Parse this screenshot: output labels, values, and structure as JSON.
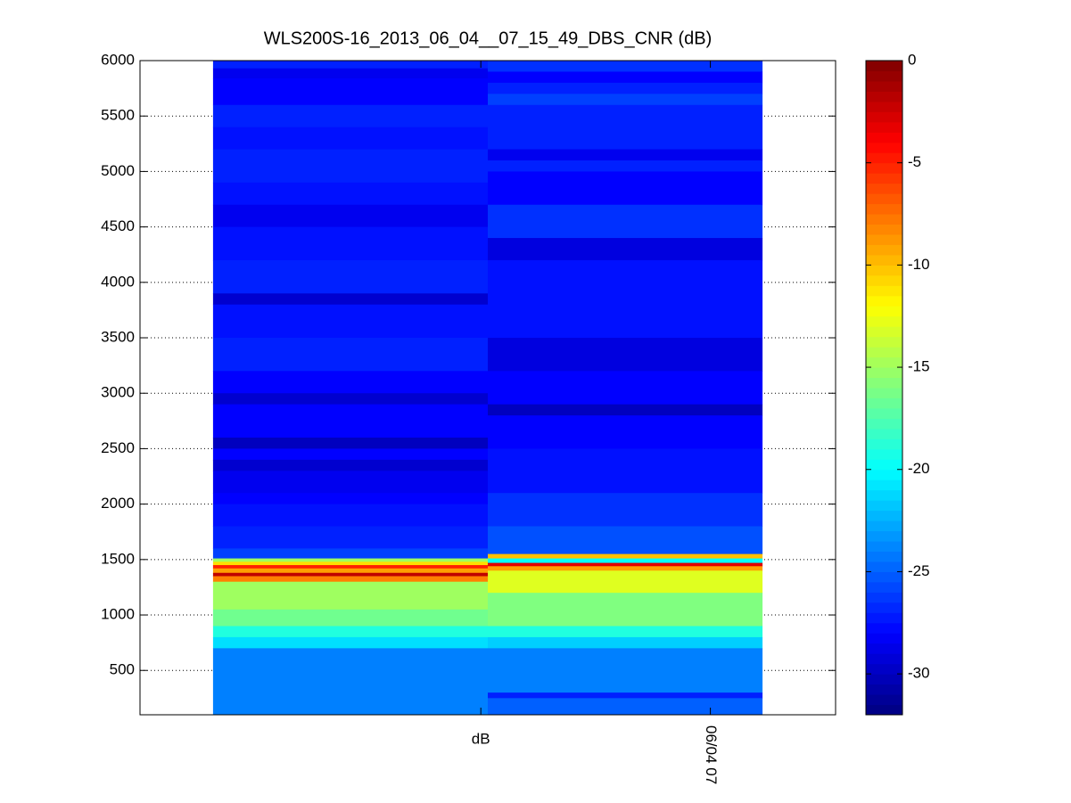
{
  "chart_data": {
    "type": "heatmap",
    "title": "WLS200S-16_2013_06_04__07_15_49_DBS_CNR (dB)",
    "ylim": [
      100,
      6000
    ],
    "yticks": [
      500,
      1000,
      1500,
      2000,
      2500,
      3000,
      3500,
      4000,
      4500,
      5000,
      5500,
      6000
    ],
    "xlim": [
      0,
      1
    ],
    "xticks": [
      {
        "value": 0.49,
        "label": "dB"
      },
      {
        "value": 0.82,
        "label": "06/04 07"
      }
    ],
    "x": [
      0.105,
      0.5,
      0.895
    ],
    "columns": [
      {
        "edges": [
          6000,
          5930,
          5840,
          5600,
          5400,
          5200,
          4900,
          4700,
          4500,
          4200,
          3900,
          3800,
          3500,
          3200,
          3000,
          2900,
          2600,
          2500,
          2400,
          2300,
          2100,
          2000,
          1800,
          1600,
          1510,
          1480,
          1450,
          1420,
          1380,
          1350,
          1300,
          1050,
          900,
          800,
          700,
          100
        ],
        "values": [
          -27,
          -28.5,
          -28,
          -27,
          -27.5,
          -27,
          -27.5,
          -28.5,
          -27.5,
          -27,
          -29.5,
          -27.5,
          -27,
          -28,
          -29.5,
          -28,
          -30,
          -28,
          -29.5,
          -28.5,
          -28,
          -27.5,
          -27,
          -26,
          -15,
          -11,
          -5,
          -9,
          -2,
          -8,
          -15,
          -16.5,
          -19,
          -21,
          -24
        ]
      },
      {
        "edges": [
          6000,
          5900,
          5800,
          5700,
          5600,
          5200,
          5100,
          5000,
          4700,
          4400,
          4200,
          3500,
          3200,
          2900,
          2800,
          2500,
          2100,
          1800,
          1550,
          1510,
          1470,
          1440,
          1400,
          1200,
          900,
          800,
          700,
          300,
          250,
          100
        ],
        "values": [
          -26.5,
          -28,
          -27,
          -26,
          -27,
          -28.5,
          -27,
          -28,
          -26.5,
          -29,
          -27.5,
          -29,
          -28,
          -30,
          -28,
          -27.5,
          -26.5,
          -25.5,
          -10,
          -20,
          -3,
          -9,
          -13,
          -16,
          -19,
          -21.5,
          -24,
          -27,
          -25
        ]
      }
    ],
    "colormap": "jet",
    "clim": [
      -32,
      0
    ],
    "colorbar_ticks": [
      -30,
      -25,
      -20,
      -15,
      -10,
      -5,
      0
    ],
    "grid": true
  }
}
